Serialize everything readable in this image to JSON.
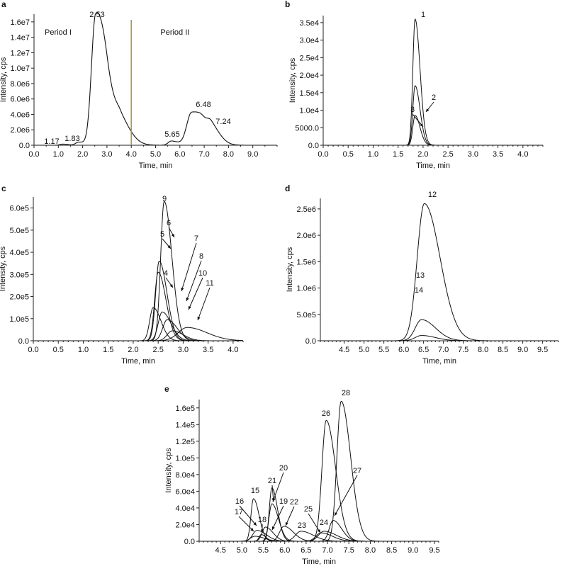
{
  "chart_data": [
    {
      "panel": "a",
      "type": "line",
      "xlabel": "Time, min",
      "ylabel": "Intensity, cps",
      "xlim": [
        0,
        10
      ],
      "ylim": [
        0,
        17000000
      ],
      "xticks": [
        "0.0",
        "1.0",
        "2.0",
        "3.0",
        "4.0",
        "5.0",
        "6.0",
        "7.0",
        "8.0",
        "9.0"
      ],
      "yticks": [
        {
          "v": 0,
          "t": "0.0"
        },
        {
          "v": 2000000,
          "t": "2.0e6"
        },
        {
          "v": 4000000,
          "t": "4.0e6"
        },
        {
          "v": 6000000,
          "t": "6.0e6"
        },
        {
          "v": 8000000,
          "t": "8.0e6"
        },
        {
          "v": 10000000,
          "t": "1.0e7"
        },
        {
          "v": 12000000,
          "t": "1.2e7"
        },
        {
          "v": 14000000,
          "t": "1.4e7"
        },
        {
          "v": 16000000,
          "t": "1.6e7"
        }
      ],
      "divider": {
        "x": 4.0,
        "color": "#9a9a3c"
      },
      "regions": [
        "Period I",
        "Period II"
      ],
      "combined": true,
      "peaks": [
        {
          "label": "1.17",
          "t": 1.17,
          "h": 150000,
          "s": 0.1
        },
        {
          "label": "1.83",
          "t": 1.83,
          "h": 400000,
          "s": 0.12
        },
        {
          "label": "2.53",
          "t": 2.53,
          "h": 16300000,
          "s": 0.17
        },
        {
          "label": "",
          "t": 3.0,
          "h": 4300000,
          "s": 0.25
        },
        {
          "label": "",
          "t": 3.55,
          "h": 1600000,
          "s": 0.2
        },
        {
          "label": "5.65",
          "t": 5.65,
          "h": 550000,
          "s": 0.13
        },
        {
          "label": "6.48",
          "t": 6.48,
          "h": 4200000,
          "s": 0.2
        },
        {
          "label": "",
          "t": 6.95,
          "h": 1300000,
          "s": 0.2
        },
        {
          "label": "7.24",
          "t": 7.3,
          "h": 1500000,
          "s": 0.17
        }
      ]
    },
    {
      "panel": "b",
      "type": "line",
      "xlabel": "Time, min",
      "ylabel": "Intensity, cps",
      "xlim": [
        0,
        4.4
      ],
      "ylim": [
        0,
        37000
      ],
      "xticks": [
        "0.0",
        "0.5",
        "1.0",
        "1.5",
        "2.0",
        "2.5",
        "3.0",
        "3.5",
        "4.0"
      ],
      "yticks": [
        {
          "v": 0,
          "t": "0.0"
        },
        {
          "v": 5000,
          "t": "5000.0"
        },
        {
          "v": 10000,
          "t": "1.0e4"
        },
        {
          "v": 15000,
          "t": "1.5e4"
        },
        {
          "v": 20000,
          "t": "2.0e4"
        },
        {
          "v": 25000,
          "t": "2.5e4"
        },
        {
          "v": 30000,
          "t": "3.0e4"
        },
        {
          "v": 35000,
          "t": "3.5e4"
        }
      ],
      "peaks": [
        {
          "label": "1",
          "t": 1.84,
          "h": 36000,
          "s": 0.045
        },
        {
          "label": "2",
          "t": 1.84,
          "h": 17000,
          "s": 0.045
        },
        {
          "label": "3",
          "t": 1.84,
          "h": 8500,
          "s": 0.045
        }
      ]
    },
    {
      "panel": "c",
      "type": "line",
      "xlabel": "Time, min",
      "ylabel": "Intensity, cps",
      "xlim": [
        0,
        4.2
      ],
      "ylim": [
        0,
        650000
      ],
      "xticks": [
        "0.0",
        "0.5",
        "1.0",
        "1.5",
        "2.0",
        "2.5",
        "3.0",
        "3.5",
        "4.0"
      ],
      "yticks": [
        {
          "v": 0,
          "t": "0.0"
        },
        {
          "v": 100000,
          "t": "1.0e5"
        },
        {
          "v": 200000,
          "t": "2.0e5"
        },
        {
          "v": 300000,
          "t": "3.0e5"
        },
        {
          "v": 400000,
          "t": "4.0e5"
        },
        {
          "v": 500000,
          "t": "5.0e5"
        },
        {
          "v": 600000,
          "t": "6.0e5"
        }
      ],
      "peaks": [
        {
          "label": "4",
          "t": 2.4,
          "h": 150000,
          "s": 0.07
        },
        {
          "label": "5",
          "t": 2.5,
          "h": 310000,
          "s": 0.07
        },
        {
          "label": "6",
          "t": 2.52,
          "h": 360000,
          "s": 0.07
        },
        {
          "label": "7",
          "t": 2.58,
          "h": 130000,
          "s": 0.08
        },
        {
          "label": "8",
          "t": 2.68,
          "h": 95000,
          "s": 0.09
        },
        {
          "label": "9",
          "t": 2.62,
          "h": 630000,
          "s": 0.07
        },
        {
          "label": "10",
          "t": 2.78,
          "h": 45000,
          "s": 0.1
        },
        {
          "label": "11",
          "t": 3.08,
          "h": 60000,
          "s": 0.18
        }
      ]
    },
    {
      "panel": "d",
      "type": "line",
      "xlabel": "Time, min",
      "ylabel": "Intensity, cps",
      "xlim": [
        3.9,
        9.9
      ],
      "ylim": [
        0,
        2700000
      ],
      "xticks": [
        "4.5",
        "5.0",
        "5.5",
        "6.0",
        "6.5",
        "7.0",
        "7.5",
        "8.0",
        "8.5",
        "9.0",
        "9.5"
      ],
      "yticks": [
        {
          "v": 0,
          "t": "0.0"
        },
        {
          "v": 500000,
          "t": "5.0e5"
        },
        {
          "v": 1000000,
          "t": "1.0e6"
        },
        {
          "v": 1500000,
          "t": "1.5e6"
        },
        {
          "v": 2000000,
          "t": "2.0e6"
        },
        {
          "v": 2500000,
          "t": "2.5e6"
        }
      ],
      "peaks": [
        {
          "label": "12",
          "t": 6.52,
          "h": 2600000,
          "s": 0.18
        },
        {
          "label": "13",
          "t": 6.45,
          "h": 400000,
          "s": 0.16
        },
        {
          "label": "14",
          "t": 6.45,
          "h": 100000,
          "s": 0.16
        }
      ]
    },
    {
      "panel": "e",
      "type": "line",
      "xlabel": "Time, min",
      "ylabel": "Intensity, cps",
      "xlim": [
        4.0,
        9.6
      ],
      "ylim": [
        0,
        170000
      ],
      "xticks": [
        "4.5",
        "5.0",
        "5.5",
        "6.0",
        "6.5",
        "7.0",
        "7.5",
        "8.0",
        "8.5",
        "9.0",
        "9.5"
      ],
      "yticks": [
        {
          "v": 0,
          "t": "0.0"
        },
        {
          "v": 20000,
          "t": "2.0e4"
        },
        {
          "v": 40000,
          "t": "4.0e4"
        },
        {
          "v": 60000,
          "t": "6.0e4"
        },
        {
          "v": 80000,
          "t": "8.0e4"
        },
        {
          "v": 100000,
          "t": "1.0e5"
        },
        {
          "v": 120000,
          "t": "1.2e5"
        },
        {
          "v": 140000,
          "t": "1.4e5"
        },
        {
          "v": 160000,
          "t": "1.6e5"
        }
      ],
      "peaks": [
        {
          "label": "15",
          "t": 5.27,
          "h": 51000,
          "s": 0.06
        },
        {
          "label": "16",
          "t": 5.35,
          "h": 13000,
          "s": 0.1
        },
        {
          "label": "17",
          "t": 5.3,
          "h": 6000,
          "s": 0.1
        },
        {
          "label": "18",
          "t": 5.45,
          "h": 8000,
          "s": 0.05
        },
        {
          "label": "19",
          "t": 5.55,
          "h": 17000,
          "s": 0.08
        },
        {
          "label": "20",
          "t": 5.7,
          "h": 64000,
          "s": 0.06
        },
        {
          "label": "21",
          "t": 5.7,
          "h": 45000,
          "s": 0.07
        },
        {
          "label": "22",
          "t": 5.98,
          "h": 18000,
          "s": 0.1
        },
        {
          "label": "23",
          "t": 6.38,
          "h": 12000,
          "s": 0.13
        },
        {
          "label": "24",
          "t": 6.92,
          "h": 12000,
          "s": 0.13
        },
        {
          "label": "25",
          "t": 6.85,
          "h": 10000,
          "s": 0.12
        },
        {
          "label": "26",
          "t": 6.97,
          "h": 145000,
          "s": 0.1
        },
        {
          "label": "27",
          "t": 7.13,
          "h": 25000,
          "s": 0.09
        },
        {
          "label": "28",
          "t": 7.32,
          "h": 168000,
          "s": 0.1
        }
      ]
    }
  ]
}
